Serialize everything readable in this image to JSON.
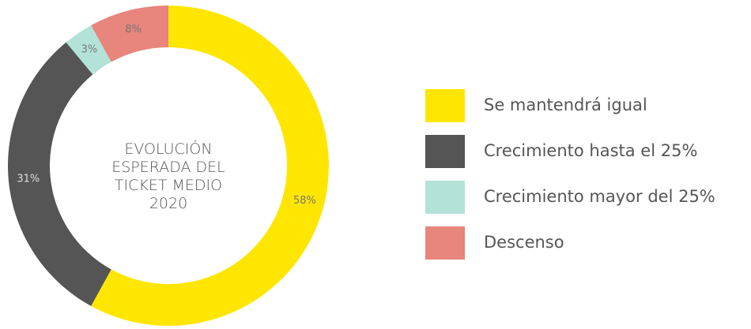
{
  "chart_data": {
    "type": "pie",
    "title": "EVOLUCIÓN ESPERADA DEL TICKET MEDIO 2020",
    "categories": [
      "Se mantendrá igual",
      "Crecimiento hasta el 25%",
      "Crecimiento mayor del 25%",
      "Descenso"
    ],
    "values": [
      58,
      31,
      3,
      8
    ],
    "value_labels": [
      "58%",
      "31%",
      "3%",
      "8%"
    ],
    "colors": [
      "#ffe600",
      "#555555",
      "#b3e3d8",
      "#e8857c"
    ],
    "legend": "right"
  }
}
